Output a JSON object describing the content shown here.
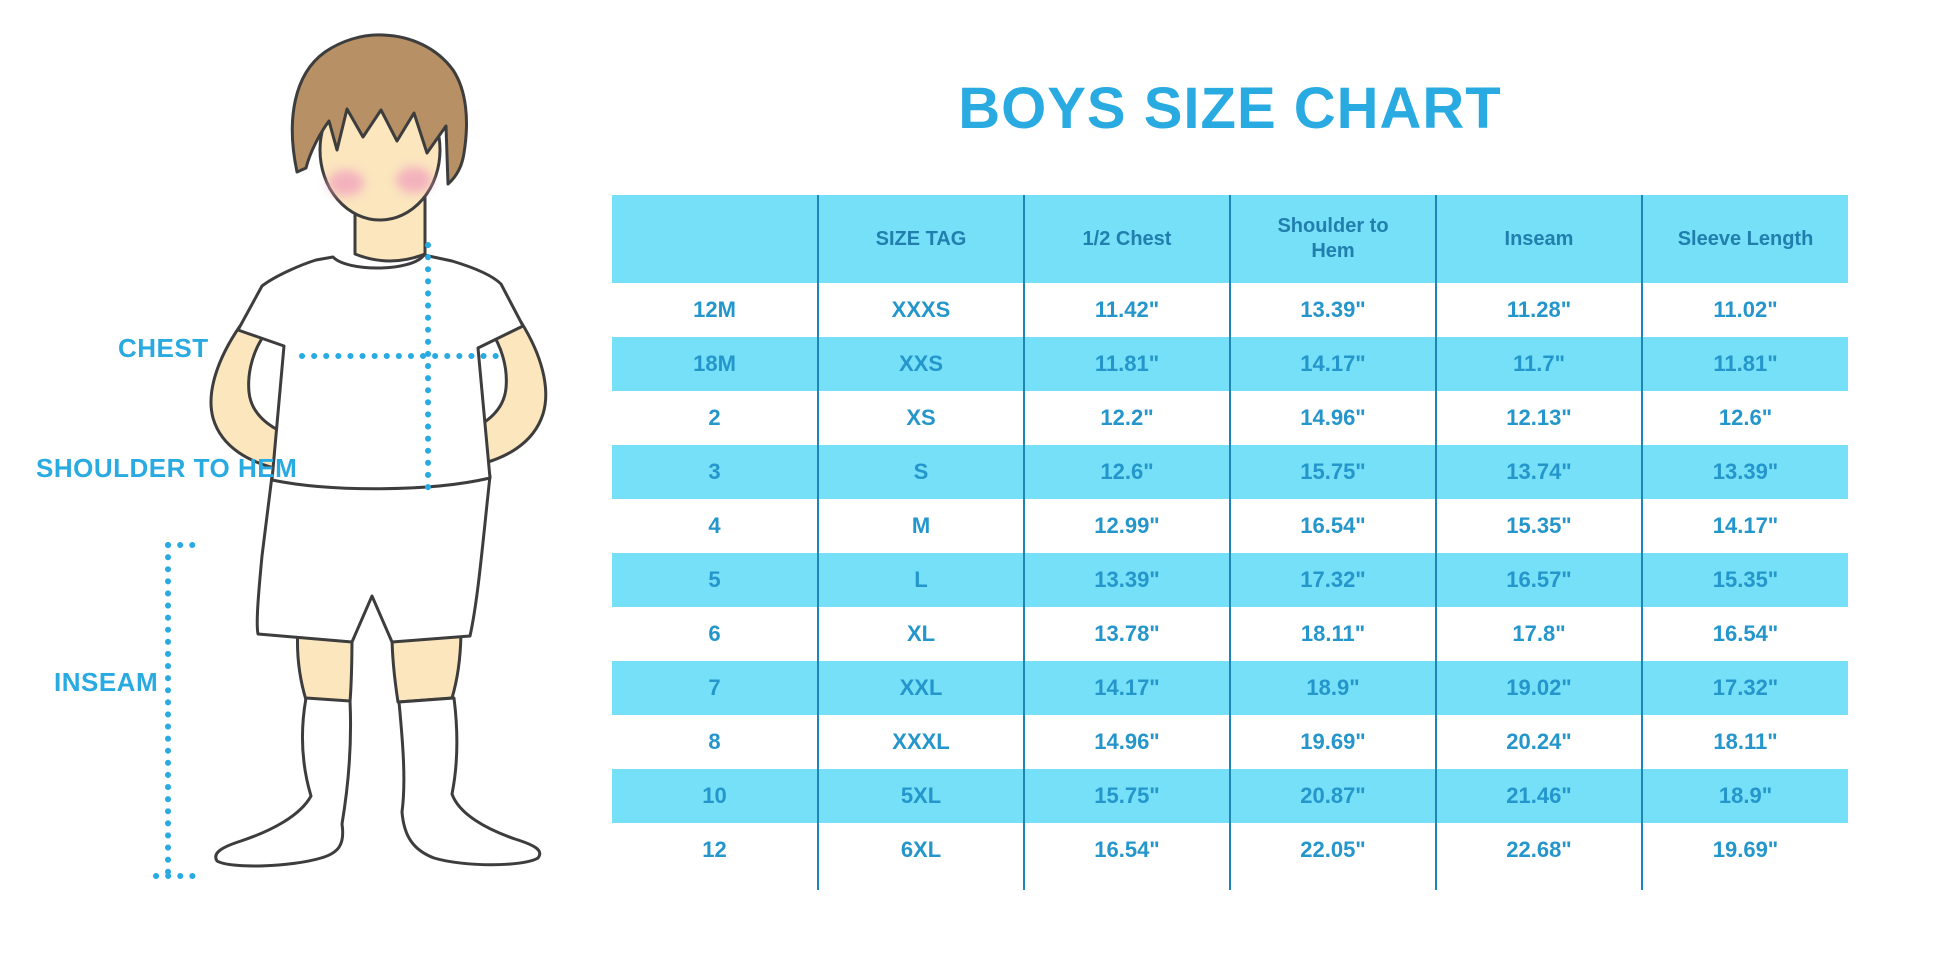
{
  "title": "BOYS SIZE CHART",
  "figure": {
    "labels": {
      "chest": "CHEST",
      "shoulder_to_hem": "SHOULDER TO HEM",
      "inseam": "INSEAM"
    }
  },
  "colors": {
    "accent_blue": "#29ABE2",
    "table_fill": "#75E0F8",
    "header_text": "#217FAE",
    "cell_text": "#2496CB",
    "divider": "#1C86B8",
    "outline": "#3D3D3D",
    "skin": "#FBE6BE",
    "hair": "#B79065",
    "blush": "#F2A9BE"
  },
  "chart_data": {
    "type": "table",
    "title": "BOYS SIZE CHART",
    "columns": [
      "",
      "SIZE TAG",
      "1/2 Chest",
      "Shoulder to Hem",
      "Inseam",
      "Sleeve Length"
    ],
    "rows": [
      [
        "12M",
        "XXXS",
        "11.42\"",
        "13.39\"",
        "11.28\"",
        "11.02\""
      ],
      [
        "18M",
        "XXS",
        "11.81\"",
        "14.17\"",
        "11.7\"",
        "11.81\""
      ],
      [
        "2",
        "XS",
        "12.2\"",
        "14.96\"",
        "12.13\"",
        "12.6\""
      ],
      [
        "3",
        "S",
        "12.6\"",
        "15.75\"",
        "13.74\"",
        "13.39\""
      ],
      [
        "4",
        "M",
        "12.99\"",
        "16.54\"",
        "15.35\"",
        "14.17\""
      ],
      [
        "5",
        "L",
        "13.39\"",
        "17.32\"",
        "16.57\"",
        "15.35\""
      ],
      [
        "6",
        "XL",
        "13.78\"",
        "18.11\"",
        "17.8\"",
        "16.54\""
      ],
      [
        "7",
        "XXL",
        "14.17\"",
        "18.9\"",
        "19.02\"",
        "17.32\""
      ],
      [
        "8",
        "XXXL",
        "14.96\"",
        "19.69\"",
        "20.24\"",
        "18.11\""
      ],
      [
        "10",
        "5XL",
        "15.75\"",
        "20.87\"",
        "21.46\"",
        "18.9\""
      ],
      [
        "12",
        "6XL",
        "16.54\"",
        "22.05\"",
        "22.68\"",
        "19.69\""
      ]
    ],
    "grid": "column-dividers-only",
    "legend_position": "none",
    "striping": "alternating rows white / light-blue, header light-blue"
  }
}
